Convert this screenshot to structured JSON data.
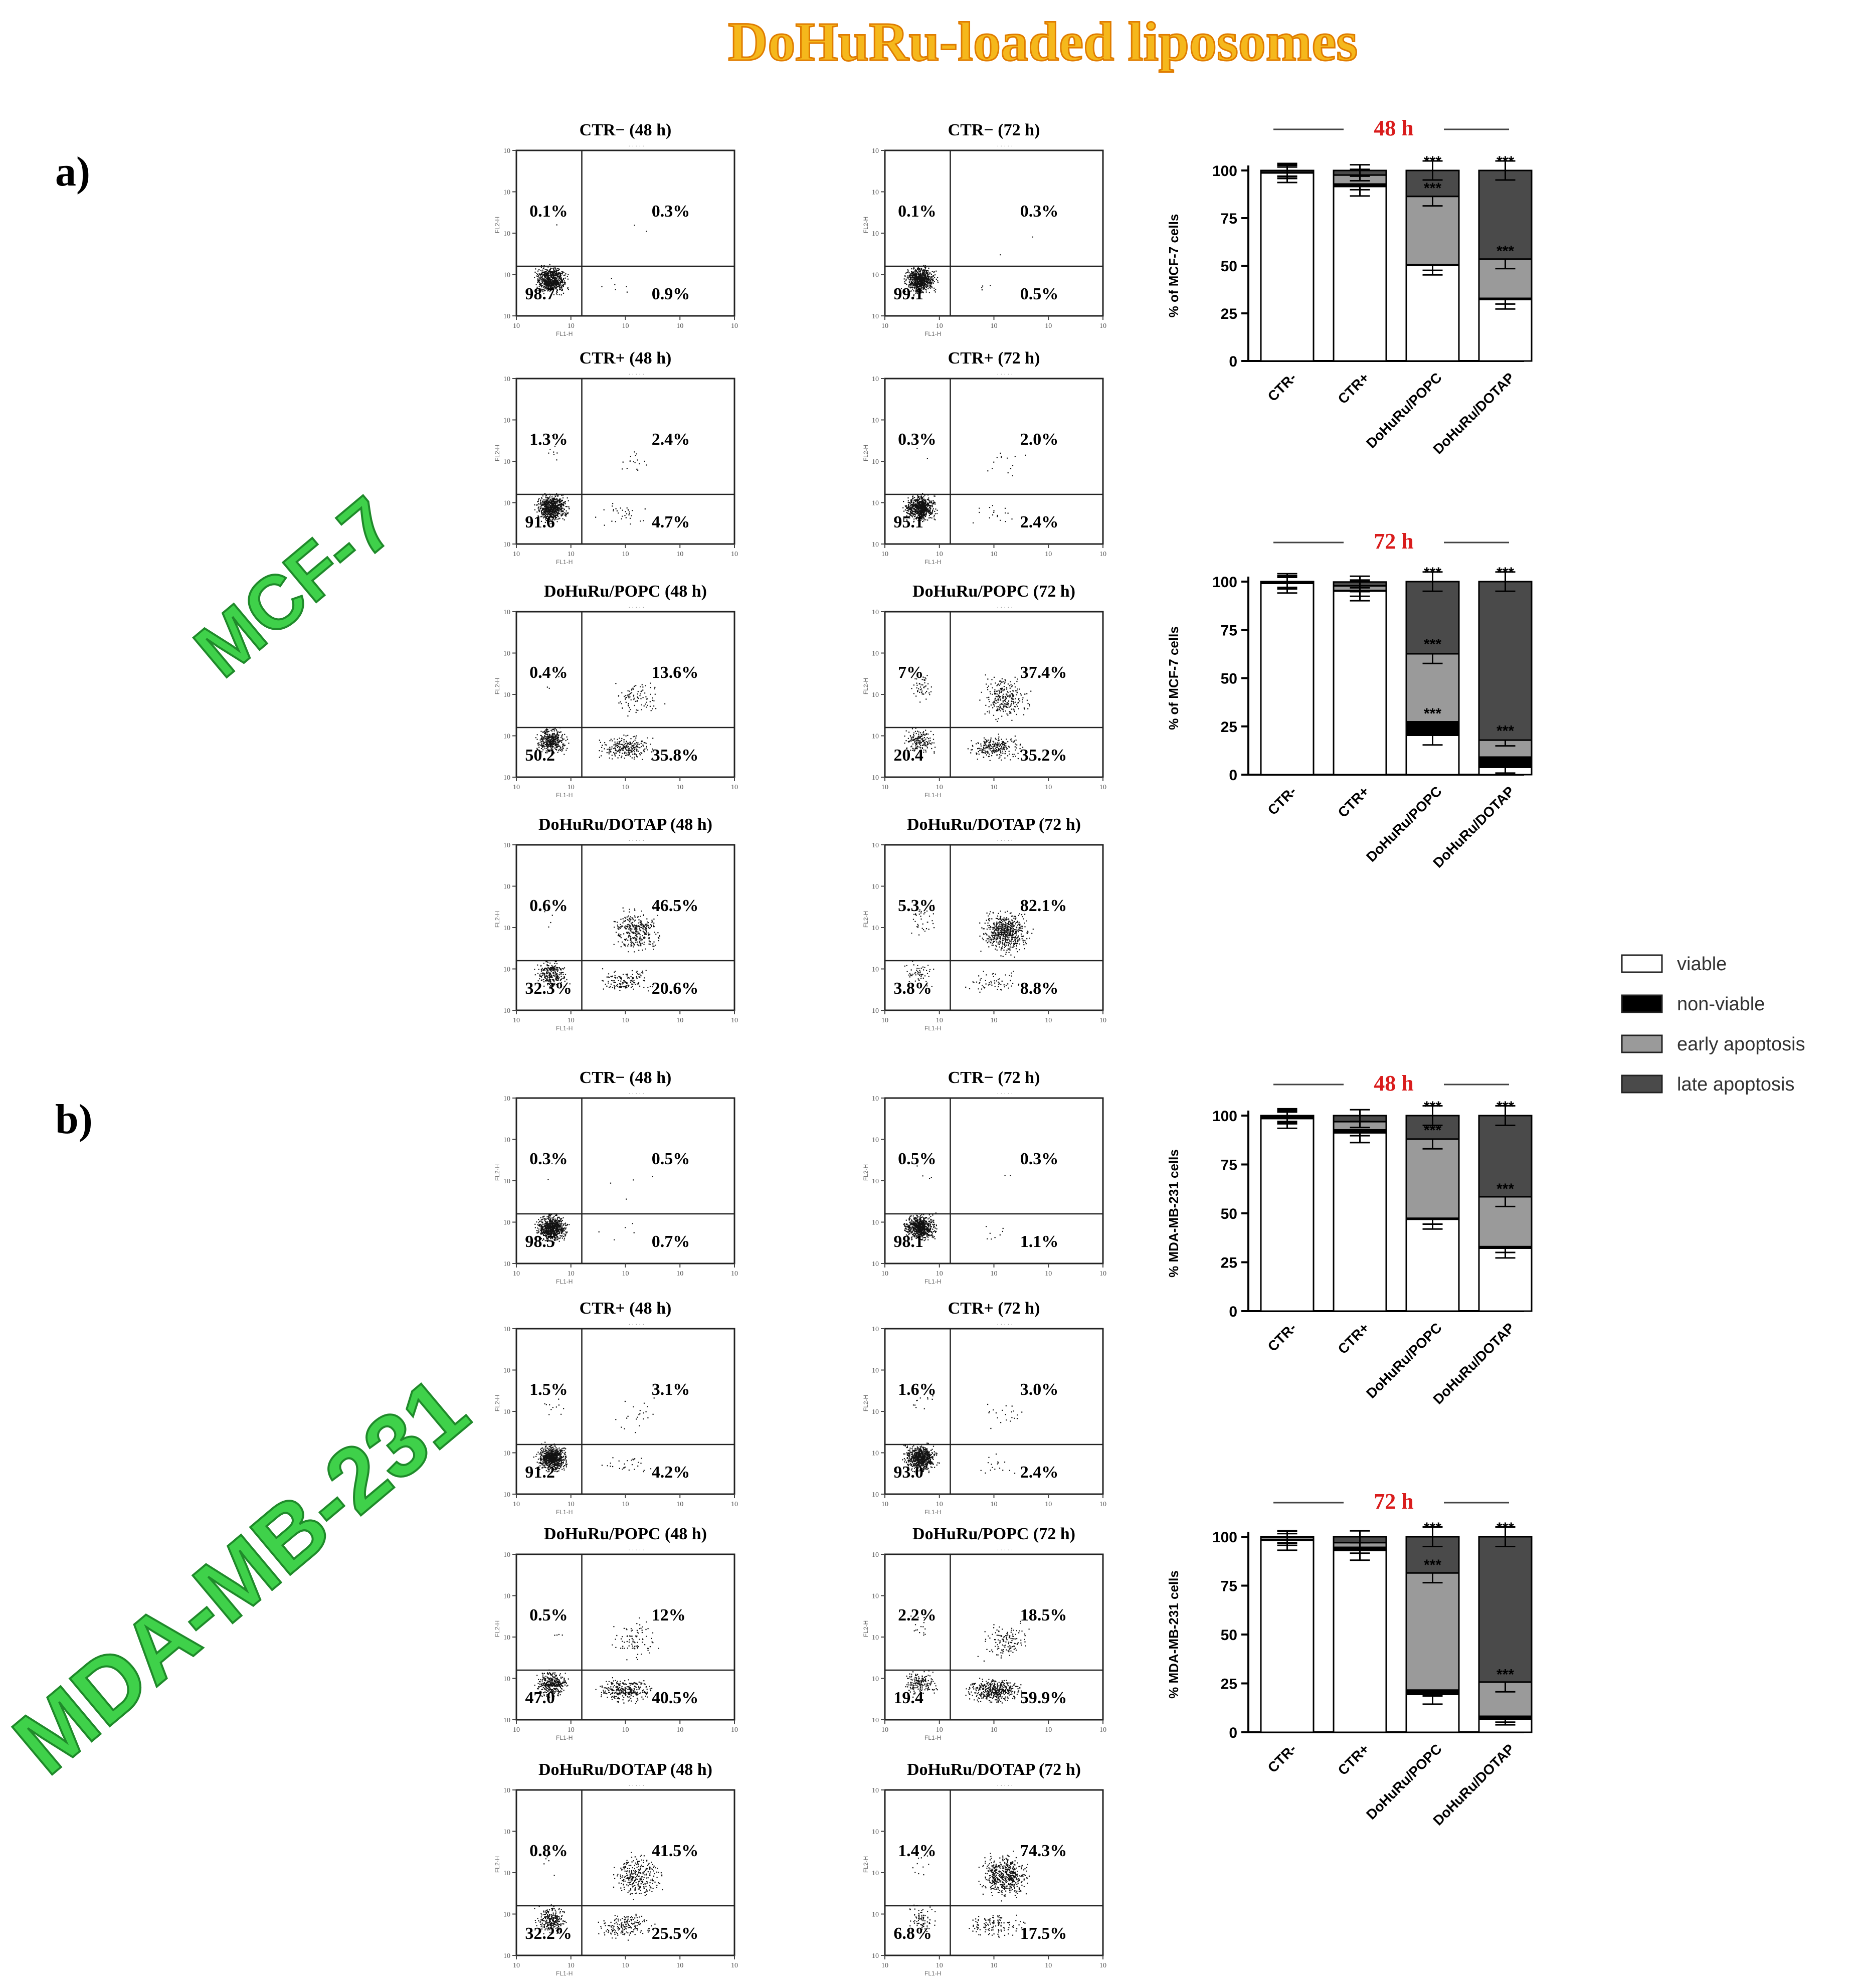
{
  "title": "DoHuRu-loaded liposomes",
  "panels": [
    {
      "letter": "a)",
      "cell_line": "MCF-7"
    },
    {
      "letter": "b)",
      "cell_line": "MDA-MB-231"
    }
  ],
  "legend": {
    "items": [
      "viable",
      "non-viable",
      "early apoptosis",
      "late apoptosis"
    ]
  },
  "colors": {
    "title": "#f5b81c",
    "title_outline": "#e07c00",
    "cell_line": "#3fd14a",
    "cell_line_outline": "#1f8a2a",
    "time_label": "#d91c1c",
    "viable": "#ffffff",
    "non_viable": "#000000",
    "early_apoptosis": "#9a9a9a",
    "late_apoptosis": "#4a4a4a"
  },
  "flow_plots": [
    {
      "panel": 0,
      "col": 0,
      "row": 0,
      "title": "CTR− (48 h)",
      "q_ul": "0.1%",
      "q_ur": "0.3%",
      "q_ll": "98.7",
      "q_lr": "0.9%"
    },
    {
      "panel": 0,
      "col": 1,
      "row": 0,
      "title": "CTR− (72 h)",
      "q_ul": "0.1%",
      "q_ur": "0.3%",
      "q_ll": "99.1",
      "q_lr": "0.5%"
    },
    {
      "panel": 0,
      "col": 0,
      "row": 1,
      "title": "CTR+ (48 h)",
      "q_ul": "1.3%",
      "q_ur": "2.4%",
      "q_ll": "91.6",
      "q_lr": "4.7%"
    },
    {
      "panel": 0,
      "col": 1,
      "row": 1,
      "title": "CTR+ (72 h)",
      "q_ul": "0.3%",
      "q_ur": "2.0%",
      "q_ll": "95.1",
      "q_lr": "2.4%"
    },
    {
      "panel": 0,
      "col": 0,
      "row": 2,
      "title": "DoHuRu/POPC (48 h)",
      "q_ul": "0.4%",
      "q_ur": "13.6%",
      "q_ll": "50.2",
      "q_lr": "35.8%"
    },
    {
      "panel": 0,
      "col": 1,
      "row": 2,
      "title": "DoHuRu/POPC (72 h)",
      "q_ul": "7%",
      "q_ur": "37.4%",
      "q_ll": "20.4",
      "q_lr": "35.2%"
    },
    {
      "panel": 0,
      "col": 0,
      "row": 3,
      "title": "DoHuRu/DOTAP (48 h)",
      "q_ul": "0.6%",
      "q_ur": "46.5%",
      "q_ll": "32.3%",
      "q_lr": "20.6%"
    },
    {
      "panel": 0,
      "col": 1,
      "row": 3,
      "title": "DoHuRu/DOTAP (72 h)",
      "q_ul": "5.3%",
      "q_ur": "82.1%",
      "q_ll": "3.8%",
      "q_lr": "8.8%"
    },
    {
      "panel": 1,
      "col": 0,
      "row": 0,
      "title": "CTR− (48 h)",
      "q_ul": "0.3%",
      "q_ur": "0.5%",
      "q_ll": "98.5",
      "q_lr": "0.7%"
    },
    {
      "panel": 1,
      "col": 1,
      "row": 0,
      "title": "CTR− (72 h)",
      "q_ul": "0.5%",
      "q_ur": "0.3%",
      "q_ll": "98.1",
      "q_lr": "1.1%"
    },
    {
      "panel": 1,
      "col": 0,
      "row": 1,
      "title": "CTR+ (48 h)",
      "q_ul": "1.5%",
      "q_ur": "3.1%",
      "q_ll": "91.2",
      "q_lr": "4.2%"
    },
    {
      "panel": 1,
      "col": 1,
      "row": 1,
      "title": "CTR+ (72 h)",
      "q_ul": "1.6%",
      "q_ur": "3.0%",
      "q_ll": "93.0",
      "q_lr": "2.4%"
    },
    {
      "panel": 1,
      "col": 0,
      "row": 2,
      "title": "DoHuRu/POPC (48 h)",
      "q_ul": "0.5%",
      "q_ur": "12%",
      "q_ll": "47.0",
      "q_lr": "40.5%"
    },
    {
      "panel": 1,
      "col": 1,
      "row": 2,
      "title": "DoHuRu/POPC (72 h)",
      "q_ul": "2.2%",
      "q_ur": "18.5%",
      "q_ll": "19.4",
      "q_lr": "59.9%"
    },
    {
      "panel": 1,
      "col": 0,
      "row": 3,
      "title": "DoHuRu/DOTAP (48 h)",
      "q_ul": "0.8%",
      "q_ur": "41.5%",
      "q_ll": "32.2%",
      "q_lr": "25.5%"
    },
    {
      "panel": 1,
      "col": 1,
      "row": 3,
      "title": "DoHuRu/DOTAP (72 h)",
      "q_ul": "1.4%",
      "q_ur": "74.3%",
      "q_ll": "6.8%",
      "q_lr": "17.5%"
    }
  ],
  "chart_data": [
    {
      "type": "bar",
      "stacked": true,
      "panel": 0,
      "slot": 0,
      "title": "48 h",
      "ylabel": "% of MCF-7 cells",
      "ylim": [
        0,
        100
      ],
      "yticks": [
        0,
        25,
        50,
        75,
        100
      ],
      "categories": [
        "CTR-",
        "CTR+",
        "DoHuRu/POPC",
        "DoHuRu/DOTAP"
      ],
      "series": [
        {
          "name": "viable",
          "values": [
            98.7,
            91.6,
            50.2,
            32.3
          ]
        },
        {
          "name": "non-viable",
          "values": [
            0.1,
            1.3,
            0.4,
            0.6
          ]
        },
        {
          "name": "early apoptosis",
          "values": [
            0.9,
            4.7,
            35.8,
            20.6
          ]
        },
        {
          "name": "late apoptosis",
          "values": [
            0.3,
            2.4,
            13.6,
            46.5
          ]
        }
      ],
      "annotations": [
        {
          "category": 2,
          "y": 100,
          "text": "***"
        },
        {
          "category": 2,
          "y": 86,
          "text": "***"
        },
        {
          "category": 3,
          "y": 100,
          "text": "***"
        },
        {
          "category": 3,
          "y": 53,
          "text": "***"
        }
      ]
    },
    {
      "type": "bar",
      "stacked": true,
      "panel": 0,
      "slot": 1,
      "title": "72 h",
      "ylabel": "% of MCF-7 cells",
      "ylim": [
        0,
        100
      ],
      "yticks": [
        0,
        25,
        50,
        75,
        100
      ],
      "categories": [
        "CTR-",
        "CTR+",
        "DoHuRu/POPC",
        "DoHuRu/DOTAP"
      ],
      "series": [
        {
          "name": "viable",
          "values": [
            99.1,
            95.1,
            20.4,
            3.8
          ]
        },
        {
          "name": "non-viable",
          "values": [
            0.1,
            0.3,
            7,
            5.3
          ]
        },
        {
          "name": "early apoptosis",
          "values": [
            0.5,
            2.4,
            35.2,
            8.8
          ]
        },
        {
          "name": "late apoptosis",
          "values": [
            0.3,
            2.0,
            37.4,
            82.1
          ]
        }
      ],
      "annotations": [
        {
          "category": 2,
          "y": 100,
          "text": "***"
        },
        {
          "category": 2,
          "y": 63,
          "text": "***"
        },
        {
          "category": 2,
          "y": 27,
          "text": "***"
        },
        {
          "category": 3,
          "y": 100,
          "text": "***"
        },
        {
          "category": 3,
          "y": 18,
          "text": "***"
        }
      ]
    },
    {
      "type": "bar",
      "stacked": true,
      "panel": 1,
      "slot": 0,
      "title": "48 h",
      "ylabel": "% MDA-MB-231 cells",
      "ylim": [
        0,
        100
      ],
      "yticks": [
        0,
        25,
        50,
        75,
        100
      ],
      "categories": [
        "CTR-",
        "CTR+",
        "DoHuRu/POPC",
        "DoHuRu/DOTAP"
      ],
      "series": [
        {
          "name": "viable",
          "values": [
            98.5,
            91.2,
            47.0,
            32.2
          ]
        },
        {
          "name": "non-viable",
          "values": [
            0.3,
            1.5,
            0.5,
            0.8
          ]
        },
        {
          "name": "early apoptosis",
          "values": [
            0.7,
            4.2,
            40.5,
            25.5
          ]
        },
        {
          "name": "late apoptosis",
          "values": [
            0.5,
            3.1,
            12,
            41.5
          ]
        }
      ],
      "annotations": [
        {
          "category": 2,
          "y": 100,
          "text": "***"
        },
        {
          "category": 2,
          "y": 88,
          "text": "***"
        },
        {
          "category": 3,
          "y": 100,
          "text": "***"
        },
        {
          "category": 3,
          "y": 58,
          "text": "***"
        }
      ]
    },
    {
      "type": "bar",
      "stacked": true,
      "panel": 1,
      "slot": 1,
      "title": "72 h",
      "ylabel": "% MDA-MB-231 cells",
      "ylim": [
        0,
        100
      ],
      "yticks": [
        0,
        25,
        50,
        75,
        100
      ],
      "categories": [
        "CTR-",
        "CTR+",
        "DoHuRu/POPC",
        "DoHuRu/DOTAP"
      ],
      "series": [
        {
          "name": "viable",
          "values": [
            98.1,
            93.0,
            19.4,
            6.8
          ]
        },
        {
          "name": "non-viable",
          "values": [
            0.5,
            1.6,
            2.2,
            1.4
          ]
        },
        {
          "name": "early apoptosis",
          "values": [
            1.1,
            2.4,
            59.9,
            17.5
          ]
        },
        {
          "name": "late apoptosis",
          "values": [
            0.3,
            3.0,
            18.5,
            74.3
          ]
        }
      ],
      "annotations": [
        {
          "category": 2,
          "y": 100,
          "text": "***"
        },
        {
          "category": 2,
          "y": 81,
          "text": "***"
        },
        {
          "category": 3,
          "y": 100,
          "text": "***"
        },
        {
          "category": 3,
          "y": 25,
          "text": "***"
        }
      ]
    }
  ]
}
